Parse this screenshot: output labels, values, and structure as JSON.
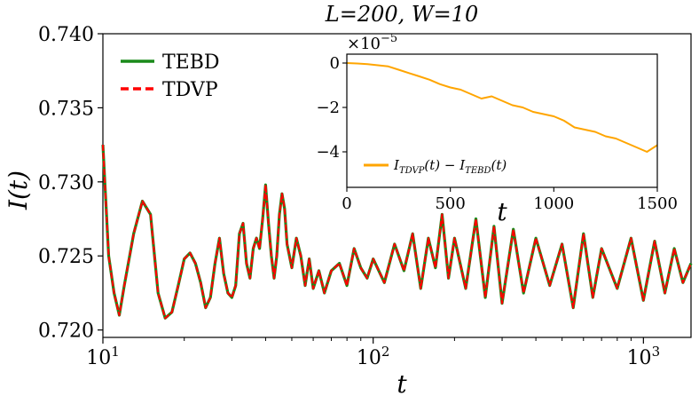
{
  "chart_data": [
    {
      "type": "line",
      "title": "L=200, W=10",
      "xlabel": "t",
      "ylabel": "I(t)",
      "xscale": "log",
      "xlim": [
        10,
        1500
      ],
      "ylim": [
        0.7195,
        0.74
      ],
      "xticks": [
        "10^1",
        "10^2",
        "10^3"
      ],
      "yticks": [
        "0.720",
        "0.725",
        "0.730",
        "0.735",
        "0.740"
      ],
      "legend_placement": "top-left",
      "series": [
        {
          "name": "TEBD",
          "color": "#1a8a1a",
          "style": "solid",
          "x": [
            10,
            10.5,
            11,
            11.5,
            12,
            13,
            14,
            15,
            16,
            17,
            18,
            19,
            20,
            21,
            22,
            23,
            24,
            25,
            26,
            27,
            28,
            29,
            30,
            31,
            32,
            33,
            34,
            35,
            36,
            37,
            38,
            39,
            40,
            41,
            42,
            43,
            44,
            45,
            46,
            47,
            48,
            50,
            52,
            54,
            56,
            58,
            60,
            63,
            66,
            70,
            75,
            80,
            85,
            90,
            95,
            100,
            110,
            120,
            130,
            140,
            150,
            160,
            170,
            180,
            190,
            200,
            220,
            240,
            260,
            280,
            300,
            330,
            360,
            400,
            450,
            500,
            550,
            600,
            650,
            700,
            800,
            900,
            1000,
            1100,
            1200,
            1300,
            1400,
            1500
          ],
          "y": [
            0.7325,
            0.725,
            0.7225,
            0.721,
            0.723,
            0.7265,
            0.7287,
            0.7278,
            0.7225,
            0.7208,
            0.7212,
            0.723,
            0.7248,
            0.7252,
            0.7245,
            0.7232,
            0.7215,
            0.7222,
            0.7245,
            0.7262,
            0.7238,
            0.7225,
            0.7222,
            0.723,
            0.7265,
            0.7272,
            0.7245,
            0.7235,
            0.7255,
            0.7262,
            0.7255,
            0.7275,
            0.7298,
            0.7272,
            0.725,
            0.7235,
            0.725,
            0.7278,
            0.7292,
            0.7282,
            0.7258,
            0.7242,
            0.7262,
            0.725,
            0.723,
            0.7248,
            0.7228,
            0.724,
            0.7225,
            0.724,
            0.7245,
            0.723,
            0.7255,
            0.7242,
            0.7235,
            0.7248,
            0.7232,
            0.7258,
            0.724,
            0.7265,
            0.7228,
            0.7262,
            0.7242,
            0.7278,
            0.7235,
            0.7262,
            0.7228,
            0.7275,
            0.7222,
            0.727,
            0.7218,
            0.7268,
            0.7225,
            0.7262,
            0.723,
            0.7258,
            0.7215,
            0.7265,
            0.7222,
            0.7255,
            0.7228,
            0.7262,
            0.722,
            0.726,
            0.7225,
            0.7255,
            0.7232,
            0.7245
          ]
        },
        {
          "name": "TDVP",
          "color": "#ff0000",
          "style": "dashed",
          "x": [
            10,
            10.5,
            11,
            11.5,
            12,
            13,
            14,
            15,
            16,
            17,
            18,
            19,
            20,
            21,
            22,
            23,
            24,
            25,
            26,
            27,
            28,
            29,
            30,
            31,
            32,
            33,
            34,
            35,
            36,
            37,
            38,
            39,
            40,
            41,
            42,
            43,
            44,
            45,
            46,
            47,
            48,
            50,
            52,
            54,
            56,
            58,
            60,
            63,
            66,
            70,
            75,
            80,
            85,
            90,
            95,
            100,
            110,
            120,
            130,
            140,
            150,
            160,
            170,
            180,
            190,
            200,
            220,
            240,
            260,
            280,
            300,
            330,
            360,
            400,
            450,
            500,
            550,
            600,
            650,
            700,
            800,
            900,
            1000,
            1100,
            1200,
            1300,
            1400,
            1500
          ],
          "y": [
            0.7325,
            0.725,
            0.7225,
            0.721,
            0.723,
            0.7265,
            0.7287,
            0.7278,
            0.7225,
            0.7208,
            0.7212,
            0.723,
            0.7248,
            0.7252,
            0.7245,
            0.7232,
            0.7215,
            0.7222,
            0.7245,
            0.7262,
            0.7238,
            0.7225,
            0.7222,
            0.723,
            0.7265,
            0.7272,
            0.7245,
            0.7235,
            0.7255,
            0.7262,
            0.7255,
            0.7275,
            0.7298,
            0.7272,
            0.725,
            0.7235,
            0.725,
            0.7278,
            0.7292,
            0.7282,
            0.7258,
            0.7242,
            0.7262,
            0.725,
            0.723,
            0.7248,
            0.7228,
            0.724,
            0.7225,
            0.724,
            0.7245,
            0.723,
            0.7255,
            0.7242,
            0.7235,
            0.7248,
            0.7232,
            0.7258,
            0.724,
            0.7265,
            0.7228,
            0.7262,
            0.7242,
            0.7278,
            0.7235,
            0.7262,
            0.7228,
            0.7275,
            0.7222,
            0.727,
            0.7218,
            0.7268,
            0.7225,
            0.7262,
            0.723,
            0.7258,
            0.7215,
            0.7265,
            0.7222,
            0.7255,
            0.7228,
            0.7262,
            0.722,
            0.726,
            0.7225,
            0.7255,
            0.7232,
            0.7245
          ]
        }
      ]
    },
    {
      "type": "line",
      "xlabel": "t",
      "xlim": [
        0,
        1500
      ],
      "ylim": [
        -5.6,
        0.4
      ],
      "y_multiplier": "×10^-5",
      "xticks": [
        "0",
        "500",
        "1000",
        "1500"
      ],
      "yticks": [
        "0",
        "−2",
        "−4"
      ],
      "legend_placement": "bottom-left",
      "series": [
        {
          "name": "I_TDVP(t) − I_TEBD(t)",
          "color": "#ffa500",
          "x": [
            0,
            50,
            100,
            150,
            200,
            250,
            300,
            350,
            400,
            450,
            500,
            550,
            600,
            650,
            700,
            750,
            800,
            850,
            900,
            950,
            1000,
            1050,
            1100,
            1150,
            1200,
            1250,
            1300,
            1350,
            1400,
            1450,
            1500
          ],
          "y": [
            0,
            -0.02,
            -0.05,
            -0.1,
            -0.15,
            -0.3,
            -0.45,
            -0.6,
            -0.75,
            -0.95,
            -1.1,
            -1.2,
            -1.4,
            -1.6,
            -1.5,
            -1.7,
            -1.9,
            -2.0,
            -2.2,
            -2.3,
            -2.4,
            -2.6,
            -2.9,
            -3.0,
            -3.1,
            -3.3,
            -3.4,
            -3.6,
            -3.8,
            -4.0,
            -3.7
          ]
        }
      ]
    }
  ],
  "labels": {
    "title_main": "L=200, W=10",
    "ylabel_main": "I(t)",
    "xlabel_main": "t",
    "xlabel_inset": "t",
    "inset_multiplier": "×10",
    "inset_multiplier_exp": "−5",
    "legend_tebd": "TEBD",
    "legend_tdvp": "TDVP",
    "inset_legend_I": "I",
    "inset_legend_sub1": "TDVP",
    "inset_legend_mid": "(t) − I",
    "inset_legend_sub2": "TEBD",
    "inset_legend_end": "(t)"
  }
}
